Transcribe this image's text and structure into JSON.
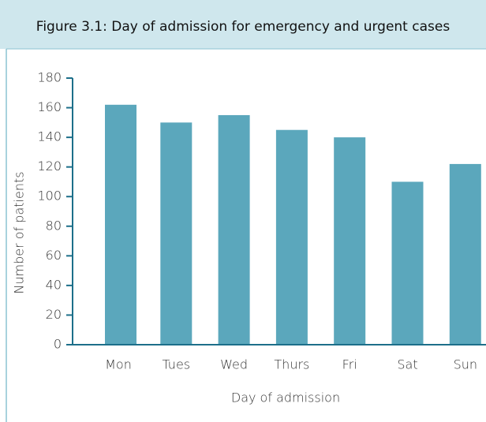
{
  "chart_data": {
    "type": "bar",
    "title": "Figure 3.1: Day of admission for emergency and urgent cases",
    "x_label": "Day of admission",
    "y_label": "Number of patients",
    "categories": [
      "Mon",
      "Tues",
      "Wed",
      "Thurs",
      "Fri",
      "Sat",
      "Sun"
    ],
    "values": [
      162,
      150,
      155,
      145,
      140,
      110,
      122
    ],
    "color": "#5ba7bc",
    "ylim": [
      0,
      180
    ],
    "yticks": [
      0,
      20,
      40,
      60,
      80,
      100,
      120,
      140,
      160,
      180
    ],
    "grid": false
  }
}
